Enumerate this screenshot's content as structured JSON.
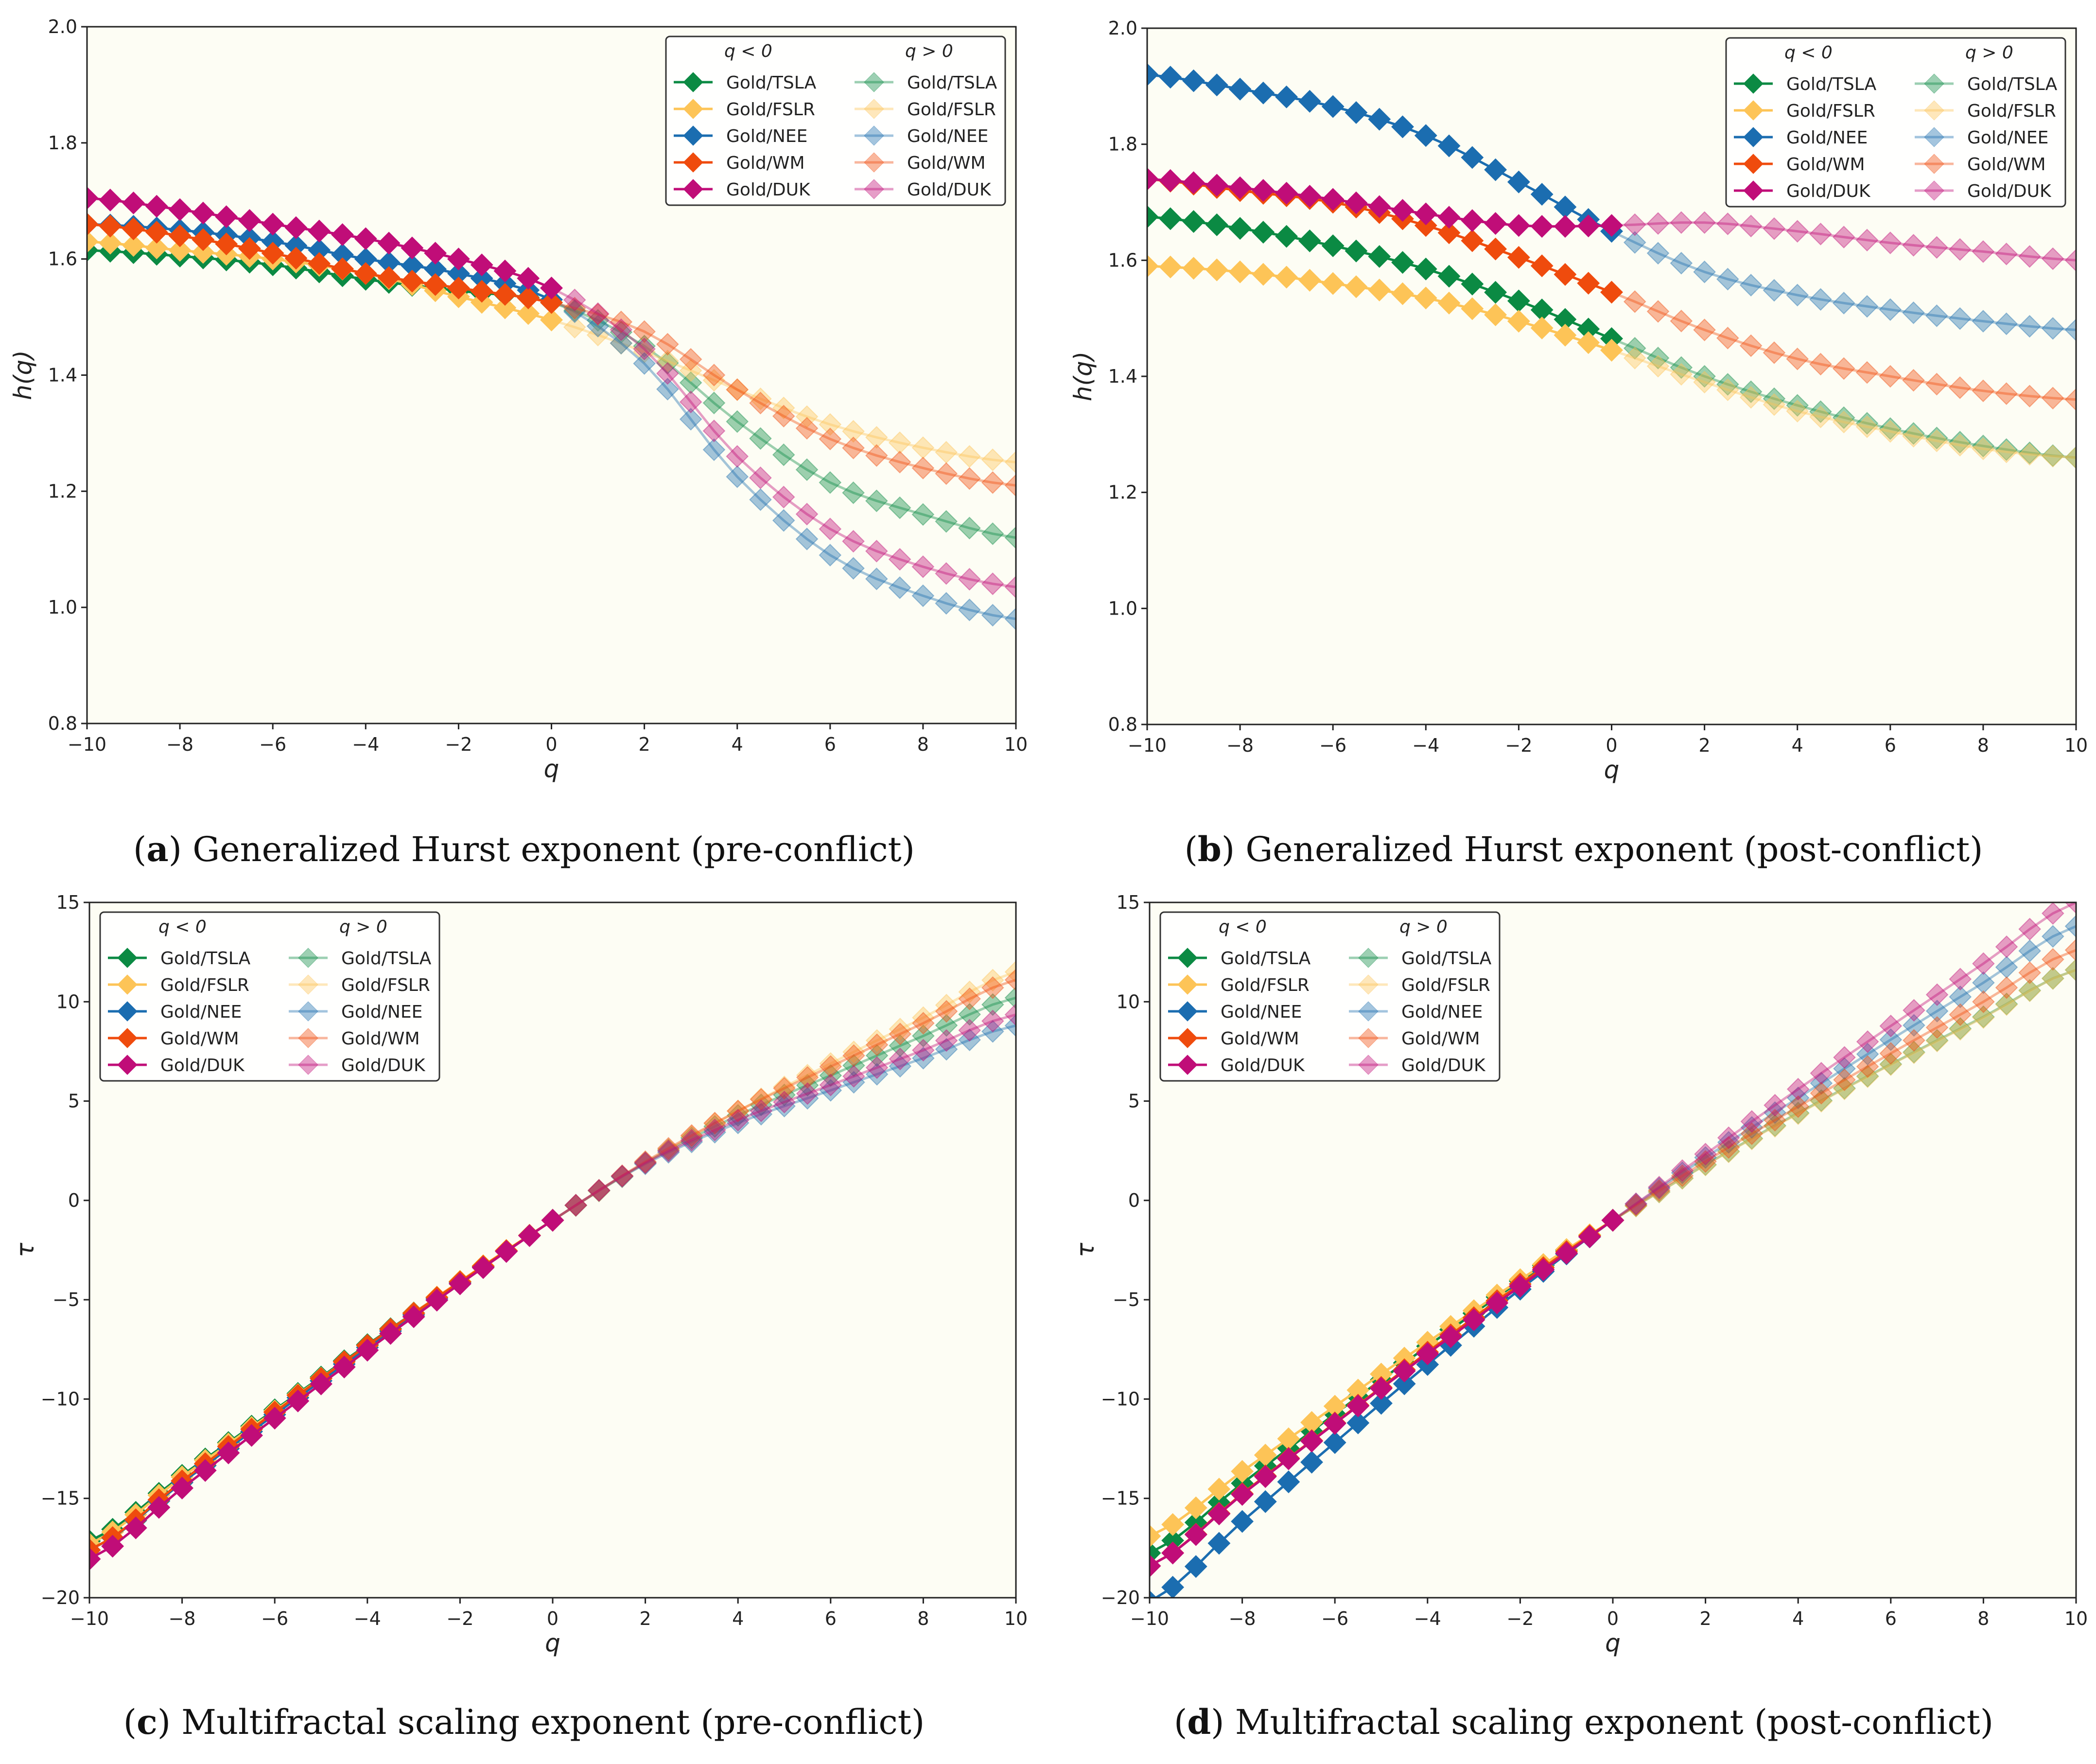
{
  "series_meta": [
    {
      "name": "Gold/TSLA",
      "color": "#0b8a43"
    },
    {
      "name": "Gold/FSLR",
      "color": "#fdc457"
    },
    {
      "name": "Gold/NEE",
      "color": "#1b6db0"
    },
    {
      "name": "Gold/WM",
      "color": "#ef4b0d"
    },
    {
      "name": "Gold/DUK",
      "color": "#c00d78"
    }
  ],
  "legend_headers": [
    "q < 0",
    "q > 0"
  ],
  "chart_data": [
    {
      "type": "line",
      "panel": "a",
      "title": "Generalized Hurst exponent (pre-conflict)",
      "xlabel": "q",
      "ylabel": "h(q)",
      "xlim": [
        -10,
        10
      ],
      "ylim": [
        0.8,
        2.0
      ],
      "xticks": [
        "−10",
        "−8",
        "−6",
        "−4",
        "−2",
        "0",
        "2",
        "4",
        "6",
        "8",
        "10"
      ],
      "yticks": [
        "0.8",
        "1.0",
        "1.2",
        "1.4",
        "1.6",
        "1.8",
        "2.0"
      ],
      "legend": "top-right",
      "x": [
        -10,
        -8,
        -6,
        -4,
        -2,
        0,
        2,
        4,
        6,
        8,
        10
      ],
      "series": [
        {
          "name": "Gold/TSLA",
          "values": [
            1.615,
            1.605,
            1.59,
            1.565,
            1.545,
            1.525,
            1.45,
            1.32,
            1.215,
            1.16,
            1.12
          ]
        },
        {
          "name": "Gold/FSLR",
          "values": [
            1.63,
            1.615,
            1.6,
            1.575,
            1.535,
            1.495,
            1.44,
            1.375,
            1.315,
            1.275,
            1.25
          ]
        },
        {
          "name": "Gold/NEE",
          "values": [
            1.66,
            1.65,
            1.63,
            1.6,
            1.575,
            1.53,
            1.42,
            1.225,
            1.09,
            1.02,
            0.98
          ]
        },
        {
          "name": "Gold/WM",
          "values": [
            1.66,
            1.64,
            1.61,
            1.575,
            1.55,
            1.525,
            1.475,
            1.375,
            1.29,
            1.24,
            1.21
          ]
        },
        {
          "name": "Gold/DUK",
          "values": [
            1.705,
            1.685,
            1.66,
            1.635,
            1.6,
            1.55,
            1.445,
            1.26,
            1.135,
            1.07,
            1.035
          ]
        }
      ]
    },
    {
      "type": "line",
      "panel": "b",
      "title": "Generalized Hurst exponent (post-conflict)",
      "xlabel": "q",
      "ylabel": "h(q)",
      "xlim": [
        -10,
        10
      ],
      "ylim": [
        0.8,
        2.0
      ],
      "xticks": [
        "−10",
        "−8",
        "−6",
        "−4",
        "−2",
        "0",
        "2",
        "4",
        "6",
        "8",
        "10"
      ],
      "yticks": [
        "0.8",
        "1.0",
        "1.2",
        "1.4",
        "1.6",
        "1.8",
        "2.0"
      ],
      "legend": "top-right",
      "x": [
        -10,
        -8,
        -6,
        -4,
        -2,
        0,
        2,
        4,
        6,
        8,
        10
      ],
      "series": [
        {
          "name": "Gold/TSLA",
          "values": [
            1.675,
            1.655,
            1.625,
            1.585,
            1.53,
            1.465,
            1.4,
            1.35,
            1.31,
            1.28,
            1.26
          ]
        },
        {
          "name": "Gold/FSLR",
          "values": [
            1.59,
            1.58,
            1.56,
            1.535,
            1.495,
            1.445,
            1.39,
            1.34,
            1.305,
            1.275,
            1.26
          ]
        },
        {
          "name": "Gold/NEE",
          "values": [
            1.92,
            1.895,
            1.865,
            1.815,
            1.735,
            1.65,
            1.58,
            1.54,
            1.515,
            1.495,
            1.48
          ]
        },
        {
          "name": "Gold/WM",
          "values": [
            1.74,
            1.72,
            1.7,
            1.66,
            1.605,
            1.545,
            1.48,
            1.43,
            1.4,
            1.375,
            1.36
          ]
        },
        {
          "name": "Gold/DUK",
          "values": [
            1.74,
            1.725,
            1.705,
            1.68,
            1.66,
            1.66,
            1.665,
            1.65,
            1.63,
            1.615,
            1.6
          ]
        }
      ]
    },
    {
      "type": "line",
      "panel": "c",
      "title": "Multifractal scaling exponent (pre-conflict)",
      "xlabel": "q",
      "ylabel": "τ",
      "xlim": [
        -10,
        10
      ],
      "ylim": [
        -20,
        15
      ],
      "xticks": [
        "−10",
        "−8",
        "−6",
        "−4",
        "−2",
        "0",
        "2",
        "4",
        "6",
        "8",
        "10"
      ],
      "yticks": [
        "−20",
        "−15",
        "−10",
        "−5",
        "0",
        "5",
        "10",
        "15"
      ],
      "legend": "top-left",
      "x": [
        -10,
        -8,
        -6,
        -4,
        -2,
        0,
        2,
        4,
        6,
        8,
        10
      ],
      "series": [
        {
          "name": "Gold/TSLA",
          "values": [
            -17.15,
            -13.84,
            -10.54,
            -7.26,
            -4.09,
            -1,
            1.9,
            4.28,
            6.29,
            8.28,
            10.2
          ]
        },
        {
          "name": "Gold/FSLR",
          "values": [
            -17.3,
            -13.92,
            -10.6,
            -7.3,
            -4.07,
            -1,
            1.88,
            4.5,
            6.89,
            9.2,
            11.5
          ]
        },
        {
          "name": "Gold/NEE",
          "values": [
            -17.6,
            -14.2,
            -10.78,
            -7.4,
            -4.15,
            -1,
            1.84,
            3.9,
            5.54,
            7.16,
            8.8
          ]
        },
        {
          "name": "Gold/WM",
          "values": [
            -17.6,
            -14.12,
            -10.66,
            -7.3,
            -4.1,
            -1,
            1.95,
            4.5,
            6.74,
            8.92,
            11.1
          ]
        },
        {
          "name": "Gold/DUK",
          "values": [
            -18.05,
            -14.48,
            -10.96,
            -7.54,
            -4.2,
            -1,
            1.89,
            4.04,
            5.81,
            7.56,
            9.35
          ]
        }
      ]
    },
    {
      "type": "line",
      "panel": "d",
      "title": "Multifractal scaling exponent (post-conflict)",
      "xlabel": "q",
      "ylabel": "τ",
      "xlim": [
        -10,
        10
      ],
      "ylim": [
        -20,
        15
      ],
      "xticks": [
        "−10",
        "−8",
        "−6",
        "−4",
        "−2",
        "0",
        "2",
        "4",
        "6",
        "8",
        "10"
      ],
      "yticks": [
        "−20",
        "−15",
        "−10",
        "−5",
        "0",
        "5",
        "10",
        "15"
      ],
      "legend": "top-left",
      "x": [
        -10,
        -8,
        -6,
        -4,
        -2,
        0,
        2,
        4,
        6,
        8,
        10
      ],
      "series": [
        {
          "name": "Gold/TSLA",
          "values": [
            -17.75,
            -14.24,
            -10.75,
            -7.34,
            -4.06,
            -1,
            1.8,
            4.4,
            6.86,
            9.24,
            11.6
          ]
        },
        {
          "name": "Gold/FSLR",
          "values": [
            -16.9,
            -13.64,
            -10.36,
            -7.14,
            -3.99,
            -1,
            1.78,
            4.36,
            6.83,
            9.2,
            11.6
          ]
        },
        {
          "name": "Gold/NEE",
          "values": [
            -20.2,
            -16.16,
            -12.19,
            -8.26,
            -4.47,
            -1,
            2.16,
            5.16,
            8.09,
            10.96,
            13.8
          ]
        },
        {
          "name": "Gold/WM",
          "values": [
            -18.4,
            -14.76,
            -11.2,
            -7.64,
            -4.21,
            -1,
            1.96,
            4.72,
            7.4,
            10.0,
            12.6
          ]
        },
        {
          "name": "Gold/DUK",
          "values": [
            -18.4,
            -14.8,
            -11.23,
            -7.72,
            -4.32,
            -1,
            2.33,
            5.6,
            8.78,
            11.92,
            15.0
          ]
        }
      ]
    }
  ]
}
